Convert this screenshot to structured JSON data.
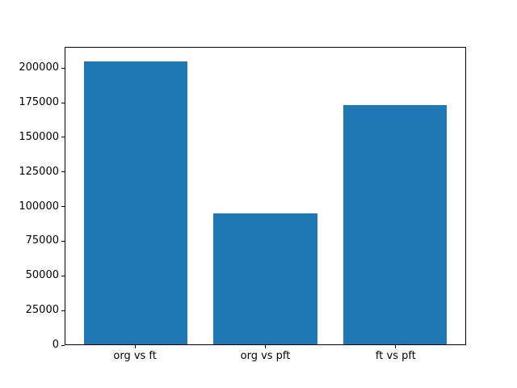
{
  "chart_data": {
    "type": "bar",
    "title": "",
    "xlabel": "",
    "ylabel": "",
    "categories": [
      "org vs ft",
      "org vs pft",
      "ft vs pft"
    ],
    "values": [
      205000,
      95000,
      173500
    ],
    "yticks": [
      0,
      25000,
      50000,
      75000,
      100000,
      125000,
      150000,
      175000,
      200000
    ],
    "ylim": [
      0,
      215250
    ],
    "bar_color": "#1f77b4",
    "background_color": "#ffffff",
    "spine_color": "#000000",
    "grid": false,
    "legend": false
  }
}
